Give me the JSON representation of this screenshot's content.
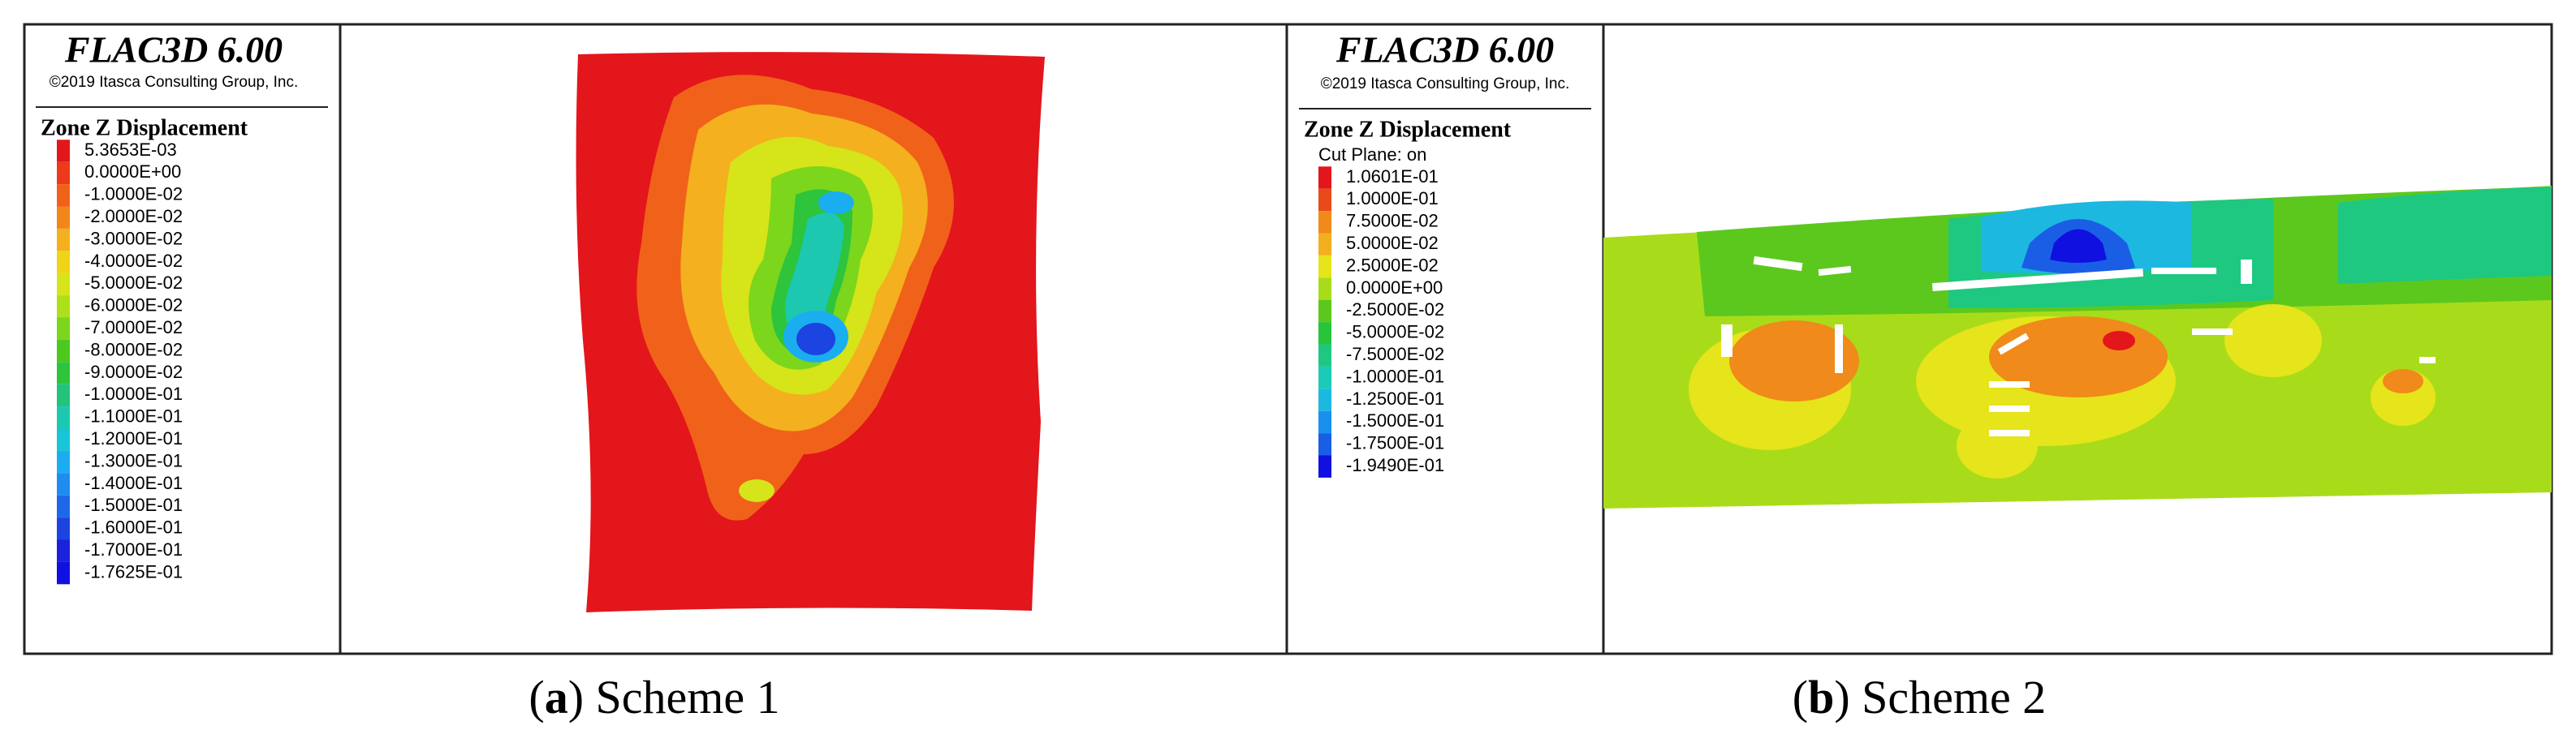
{
  "panels": [
    {
      "header": {
        "title": "FLAC3D 6.00",
        "copyright": "©2019 Itasca Consulting Group, Inc."
      },
      "legend": {
        "title": "Zone Z Displacement",
        "entries": [
          {
            "label": "5.3653E-03",
            "color": "#e3161b"
          },
          {
            "label": "0.0000E+00",
            "color": "#ec3a1a"
          },
          {
            "label": "-1.0000E-02",
            "color": "#f0621a"
          },
          {
            "label": "-2.0000E-02",
            "color": "#f2861a"
          },
          {
            "label": "-3.0000E-02",
            "color": "#f4b01e"
          },
          {
            "label": "-4.0000E-02",
            "color": "#efd417"
          },
          {
            "label": "-5.0000E-02",
            "color": "#d6e41a"
          },
          {
            "label": "-6.0000E-02",
            "color": "#ace01a"
          },
          {
            "label": "-7.0000E-02",
            "color": "#7cd61c"
          },
          {
            "label": "-8.0000E-02",
            "color": "#4cc81e"
          },
          {
            "label": "-9.0000E-02",
            "color": "#2ec43c"
          },
          {
            "label": "-1.0000E-01",
            "color": "#21c47a"
          },
          {
            "label": "-1.1000E-01",
            "color": "#1cc8b0"
          },
          {
            "label": "-1.2000E-01",
            "color": "#18c4d8"
          },
          {
            "label": "-1.3000E-01",
            "color": "#1aaef0"
          },
          {
            "label": "-1.4000E-01",
            "color": "#1e8cf0"
          },
          {
            "label": "-1.5000E-01",
            "color": "#1e68e8"
          },
          {
            "label": "-1.6000E-01",
            "color": "#1c44e0"
          },
          {
            "label": "-1.7000E-01",
            "color": "#1a22dc"
          },
          {
            "label": "-1.7625E-01",
            "color": "#1010e0"
          }
        ]
      },
      "caption": {
        "prefix": "(",
        "label": "a",
        "suffix": ") Scheme 1"
      }
    },
    {
      "header": {
        "title": "FLAC3D 6.00",
        "copyright": "©2019 Itasca Consulting Group, Inc."
      },
      "legend": {
        "title": "Zone Z Displacement",
        "subtitle": "Cut Plane: on",
        "entries": [
          {
            "label": "1.0601E-01",
            "color": "#e3161b"
          },
          {
            "label": "1.0000E-01",
            "color": "#ea4a1a"
          },
          {
            "label": "7.5000E-02",
            "color": "#f08a1a"
          },
          {
            "label": "5.0000E-02",
            "color": "#f2b01e"
          },
          {
            "label": "2.5000E-02",
            "color": "#e6e41a"
          },
          {
            "label": "0.0000E+00",
            "color": "#a8dc1a"
          },
          {
            "label": "-2.5000E-02",
            "color": "#5cc81e"
          },
          {
            "label": "-5.0000E-02",
            "color": "#28c43a"
          },
          {
            "label": "-7.5000E-02",
            "color": "#1ec880"
          },
          {
            "label": "-1.0000E-01",
            "color": "#1ccab8"
          },
          {
            "label": "-1.2500E-01",
            "color": "#1cb8e0"
          },
          {
            "label": "-1.5000E-01",
            "color": "#1a90ee"
          },
          {
            "label": "-1.7500E-01",
            "color": "#1a5ee6"
          },
          {
            "label": "-1.9490E-01",
            "color": "#1010e0"
          }
        ]
      },
      "caption": {
        "prefix": "(",
        "label": "b",
        "suffix": ") Scheme 2"
      }
    }
  ]
}
